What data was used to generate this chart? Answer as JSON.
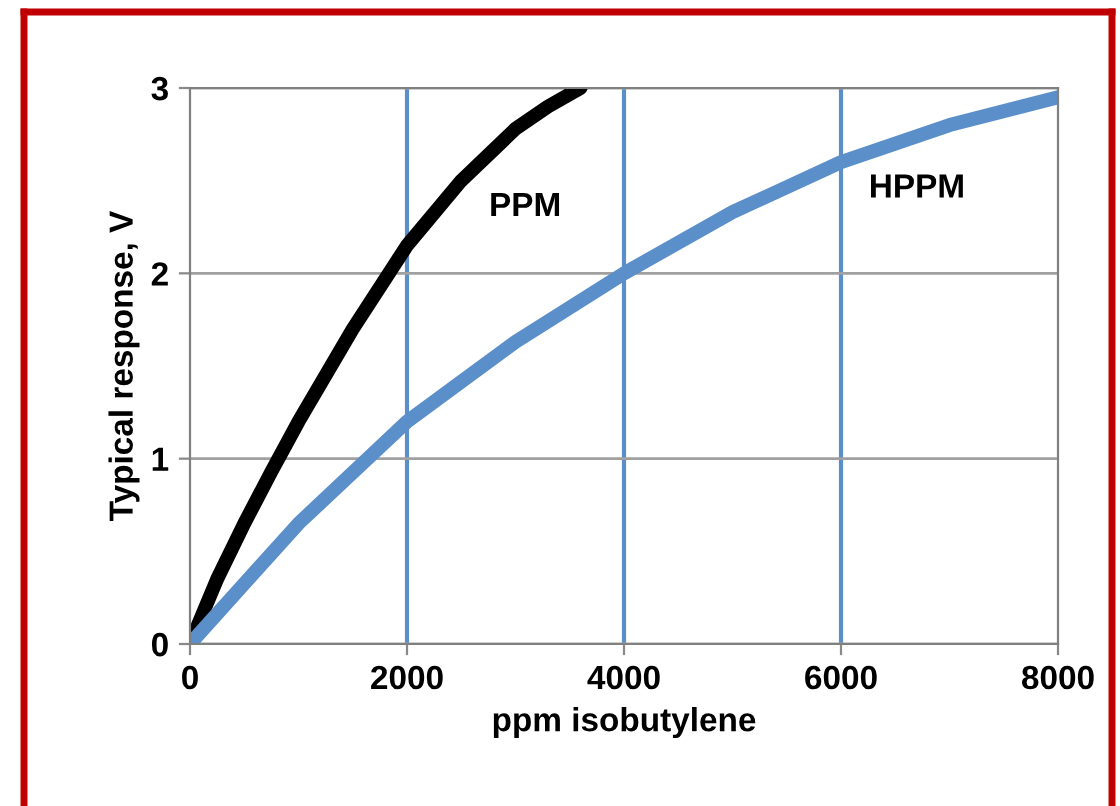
{
  "chart_data": {
    "type": "line",
    "xlabel": "ppm isobutylene",
    "ylabel": "Typical response, V",
    "series": [
      {
        "name": "PPM",
        "color": "#000000",
        "x": [
          0,
          250,
          500,
          750,
          1000,
          1500,
          2000,
          2500,
          3000,
          3300,
          3600
        ],
        "values": [
          0,
          0.35,
          0.65,
          0.93,
          1.2,
          1.7,
          2.15,
          2.5,
          2.78,
          2.9,
          3.0
        ]
      },
      {
        "name": "HPPM",
        "color": "#5b8fc9",
        "x": [
          0,
          1000,
          2000,
          3000,
          4000,
          5000,
          6000,
          7000,
          8000
        ],
        "values": [
          0,
          0.65,
          1.2,
          1.63,
          2.0,
          2.33,
          2.6,
          2.8,
          2.95
        ]
      }
    ],
    "xlim": [
      0,
      8000
    ],
    "ylim": [
      0,
      3
    ],
    "xticks": [
      0,
      2000,
      4000,
      6000,
      8000
    ],
    "yticks": [
      0,
      1,
      2,
      3
    ],
    "grid": true,
    "legend": false,
    "marker": "none",
    "line_style": "solid"
  }
}
